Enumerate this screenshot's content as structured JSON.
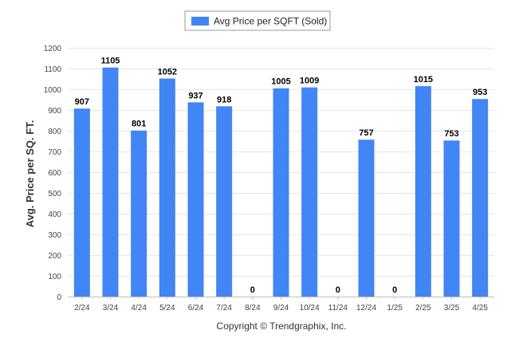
{
  "chart_data": {
    "type": "bar",
    "categories": [
      "2/24",
      "3/24",
      "4/24",
      "5/24",
      "6/24",
      "7/24",
      "8/24",
      "9/24",
      "10/24",
      "11/24",
      "12/24",
      "1/25",
      "2/25",
      "3/25",
      "4/25"
    ],
    "series": [
      {
        "name": "Avg Price per SQFT (Sold)",
        "values": [
          907,
          1105,
          801,
          1052,
          937,
          918,
          0,
          1005,
          1009,
          0,
          757,
          0,
          1015,
          753,
          953
        ],
        "color": "#4285f4"
      }
    ],
    "title": "",
    "xlabel": "",
    "ylabel": "Avg. Price per SQ. FT.",
    "ylim": [
      0,
      1200
    ],
    "yticks": [
      0,
      100,
      200,
      300,
      400,
      500,
      600,
      700,
      800,
      900,
      1000,
      1100,
      1200
    ],
    "grid": true,
    "legend_position": "top-center",
    "data_labels": true
  },
  "footer": {
    "copyright": "Copyright © Trendgraphix, Inc."
  },
  "colors": {
    "bar": "#4285f4",
    "grid": "#e6e6e6",
    "axis": "#c0c0c0"
  }
}
